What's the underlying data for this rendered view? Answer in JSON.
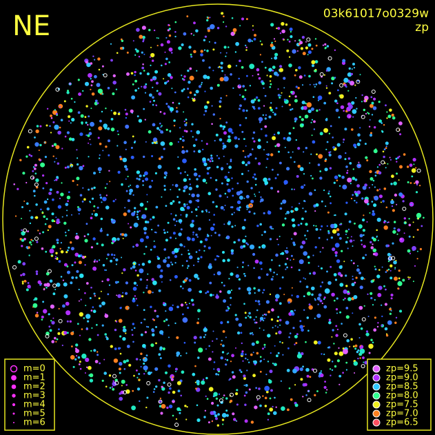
{
  "direction_label": "NE",
  "frame_id": "03k61017o0329w",
  "color_key": "zp",
  "magnitude_legend": [
    "m=0",
    "m=1",
    "m=2",
    "m=3",
    "m=4",
    "m=5",
    "m=6"
  ],
  "zp_legend": [
    {
      "label": "zp=9.5",
      "color": "#e060ff"
    },
    {
      "label": "zp=9.0",
      "color": "#b030ff"
    },
    {
      "label": "zp=8.5",
      "color": "#30c8ff"
    },
    {
      "label": "zp=8.0",
      "color": "#30ff90"
    },
    {
      "label": "zp=7.5",
      "color": "#f0f020"
    },
    {
      "label": "zp=7.0",
      "color": "#ff8020"
    },
    {
      "label": "zp=6.5",
      "color": "#ff5060"
    }
  ]
}
